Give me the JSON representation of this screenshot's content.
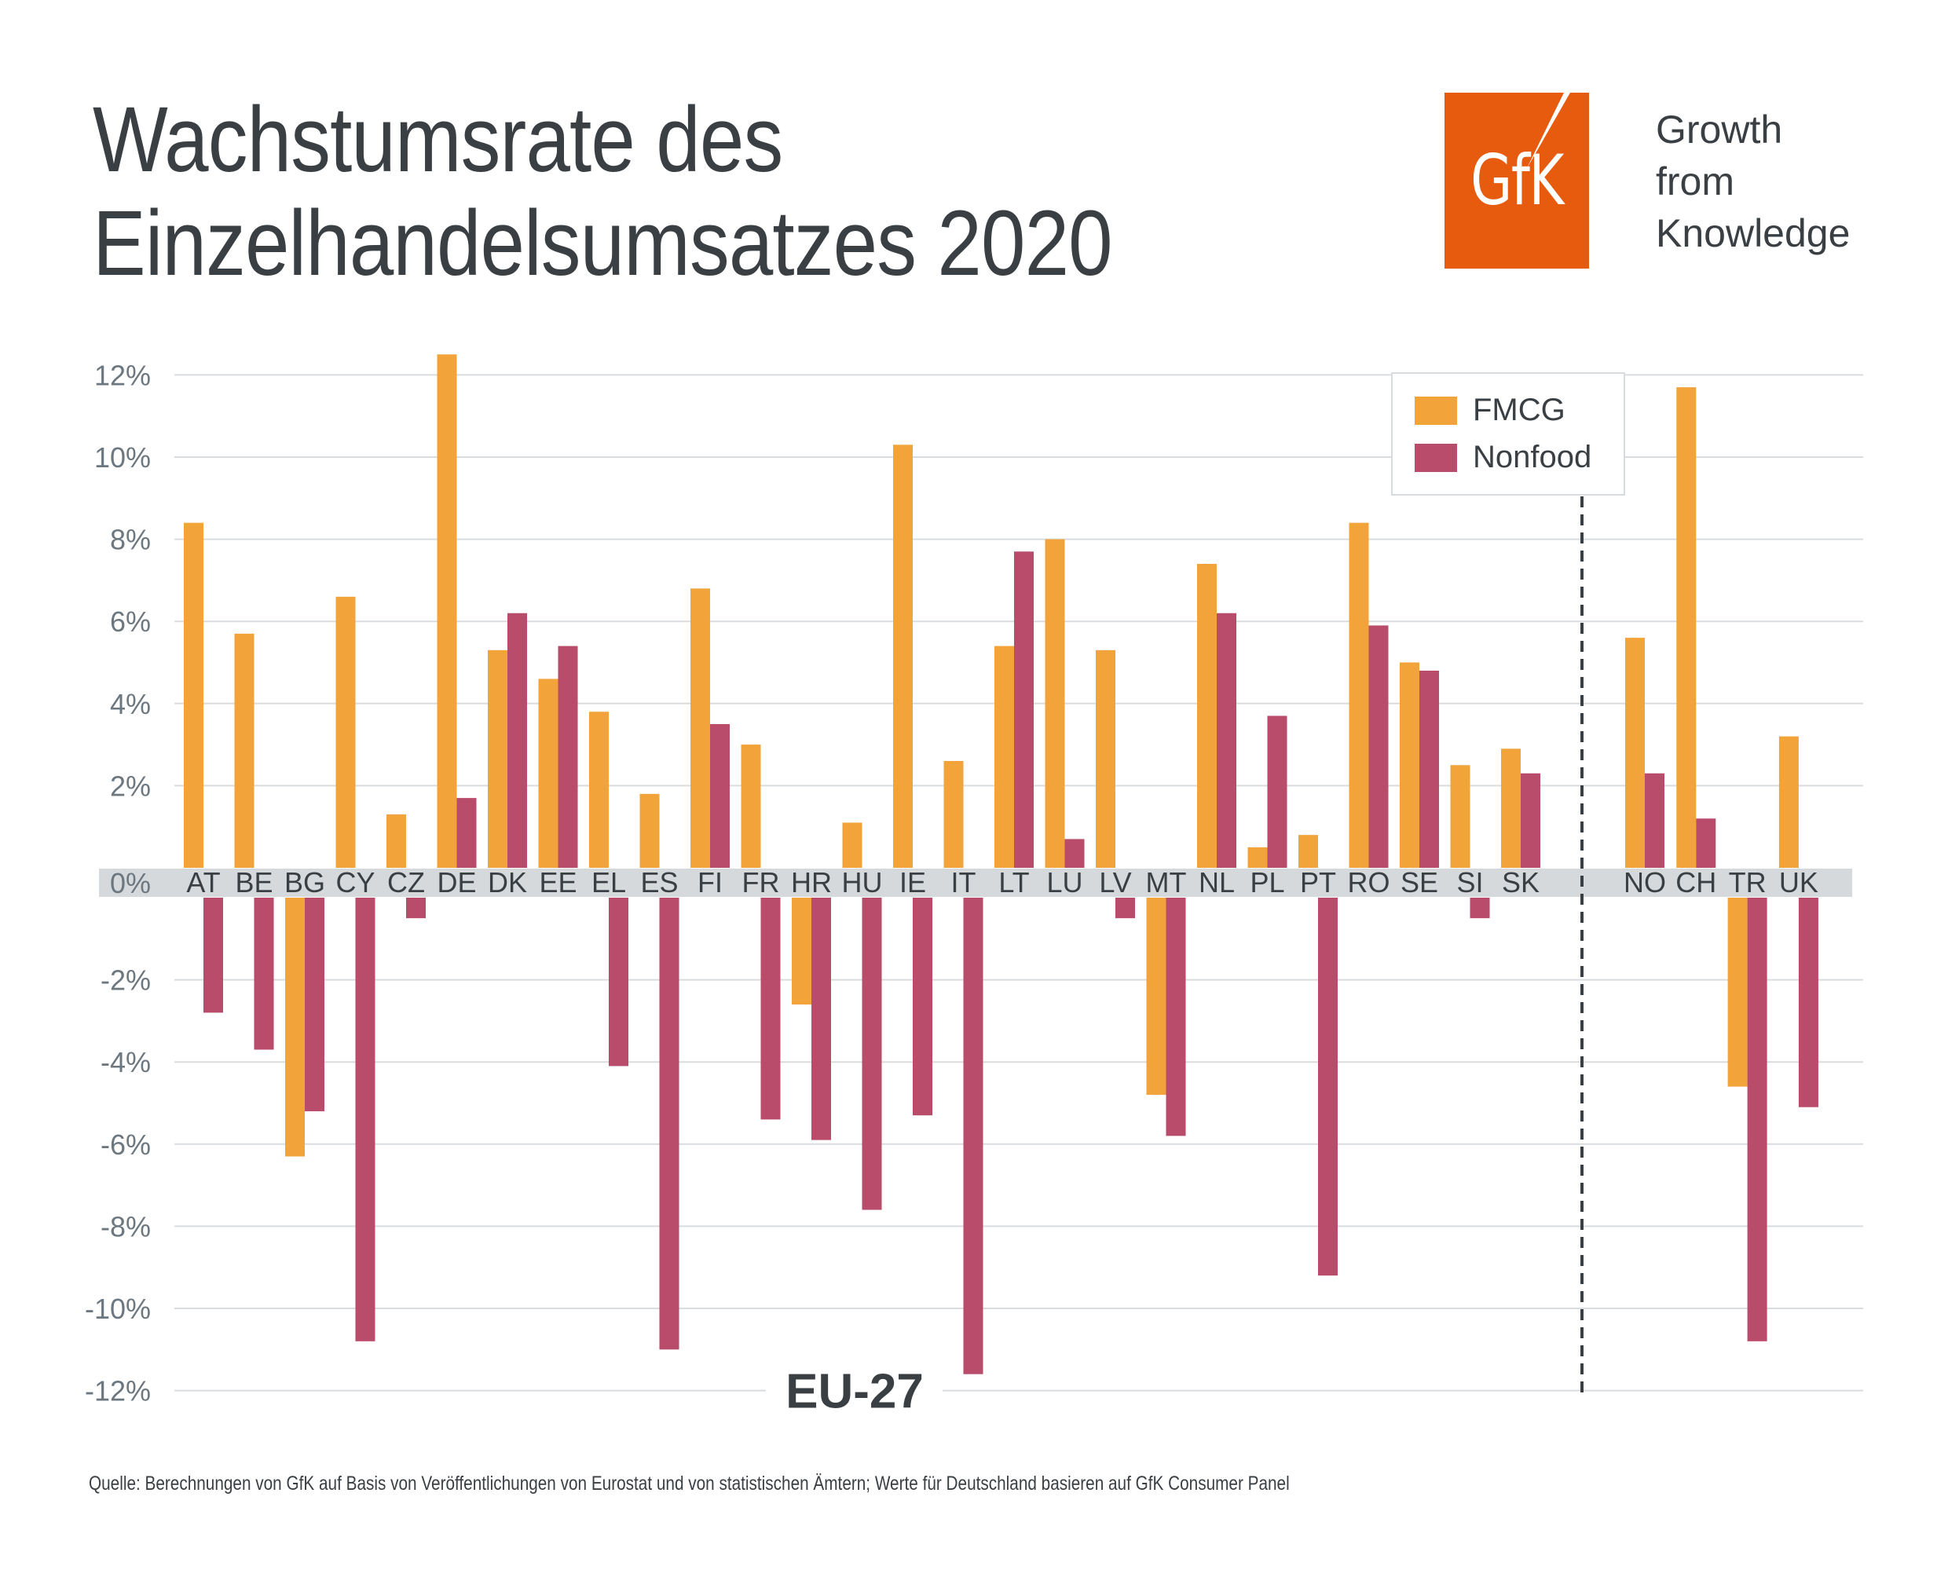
{
  "header": {
    "title_line1": "Wachstumsrate des",
    "title_line2": "Einzelhandelsumsatzes 2020",
    "logo_text": "GfK",
    "tagline": [
      "Growth",
      "from",
      "Knowledge"
    ]
  },
  "colors": {
    "fmcg": "#F2A33A",
    "nonfood": "#B94B6B",
    "zero_band": "#D5D9DC",
    "grid": "#D9DCDF",
    "text": "#3A3F44",
    "axis_text": "#6C7780",
    "brand": "#E75B0F"
  },
  "footer": {
    "source": "Quelle: Berechnungen von GfK auf Basis von Veröffentlichungen von Eurostat und von statistischen Ämtern; Werte für Deutschland basieren auf GfK Consumer Panel"
  },
  "chart_data": {
    "type": "bar",
    "title": "Wachstumsrate des Einzelhandelsumsatzes 2020",
    "xlabel": "",
    "ylabel": "",
    "ylim": [
      -12,
      12
    ],
    "yticks": [
      12,
      10,
      8,
      6,
      4,
      2,
      0,
      -2,
      -4,
      -6,
      -8,
      -10,
      -12
    ],
    "ytick_labels": [
      "12%",
      "10%",
      "8%",
      "6%",
      "4%",
      "2%",
      "0%",
      "-2%",
      "-4%",
      "-6%",
      "-8%",
      "-10%",
      "-12%"
    ],
    "grid": true,
    "legend": {
      "position": "top-right",
      "entries": [
        "FMCG",
        "Nonfood"
      ]
    },
    "group_annotation": "EU-27",
    "categories": [
      "AT",
      "BE",
      "BG",
      "CY",
      "CZ",
      "DE",
      "DK",
      "EE",
      "EL",
      "ES",
      "FI",
      "FR",
      "HR",
      "HU",
      "IE",
      "IT",
      "LT",
      "LU",
      "LV",
      "MT",
      "NL",
      "PL",
      "PT",
      "RO",
      "SE",
      "SI",
      "SK",
      "NO",
      "CH",
      "TR",
      "UK"
    ],
    "eu_group_count": 27,
    "series": [
      {
        "name": "FMCG",
        "values": [
          8.4,
          5.7,
          -6.3,
          6.6,
          1.3,
          12.5,
          5.3,
          4.6,
          3.8,
          1.8,
          6.8,
          3.0,
          -2.6,
          1.1,
          10.3,
          2.6,
          5.4,
          8.0,
          5.3,
          -4.8,
          7.4,
          0.5,
          0.8,
          8.4,
          5.0,
          2.5,
          2.9,
          5.6,
          11.7,
          -4.6,
          3.2
        ]
      },
      {
        "name": "Nonfood",
        "values": [
          -2.8,
          -3.7,
          -5.2,
          -10.8,
          -0.5,
          1.7,
          6.2,
          5.4,
          -4.1,
          -11.0,
          3.5,
          -5.4,
          -5.9,
          -7.6,
          -5.3,
          -11.6,
          7.7,
          0.7,
          -0.5,
          -5.8,
          6.2,
          3.7,
          -9.2,
          5.9,
          4.8,
          -0.5,
          2.3,
          2.3,
          1.2,
          -10.8,
          -5.1
        ]
      }
    ]
  }
}
